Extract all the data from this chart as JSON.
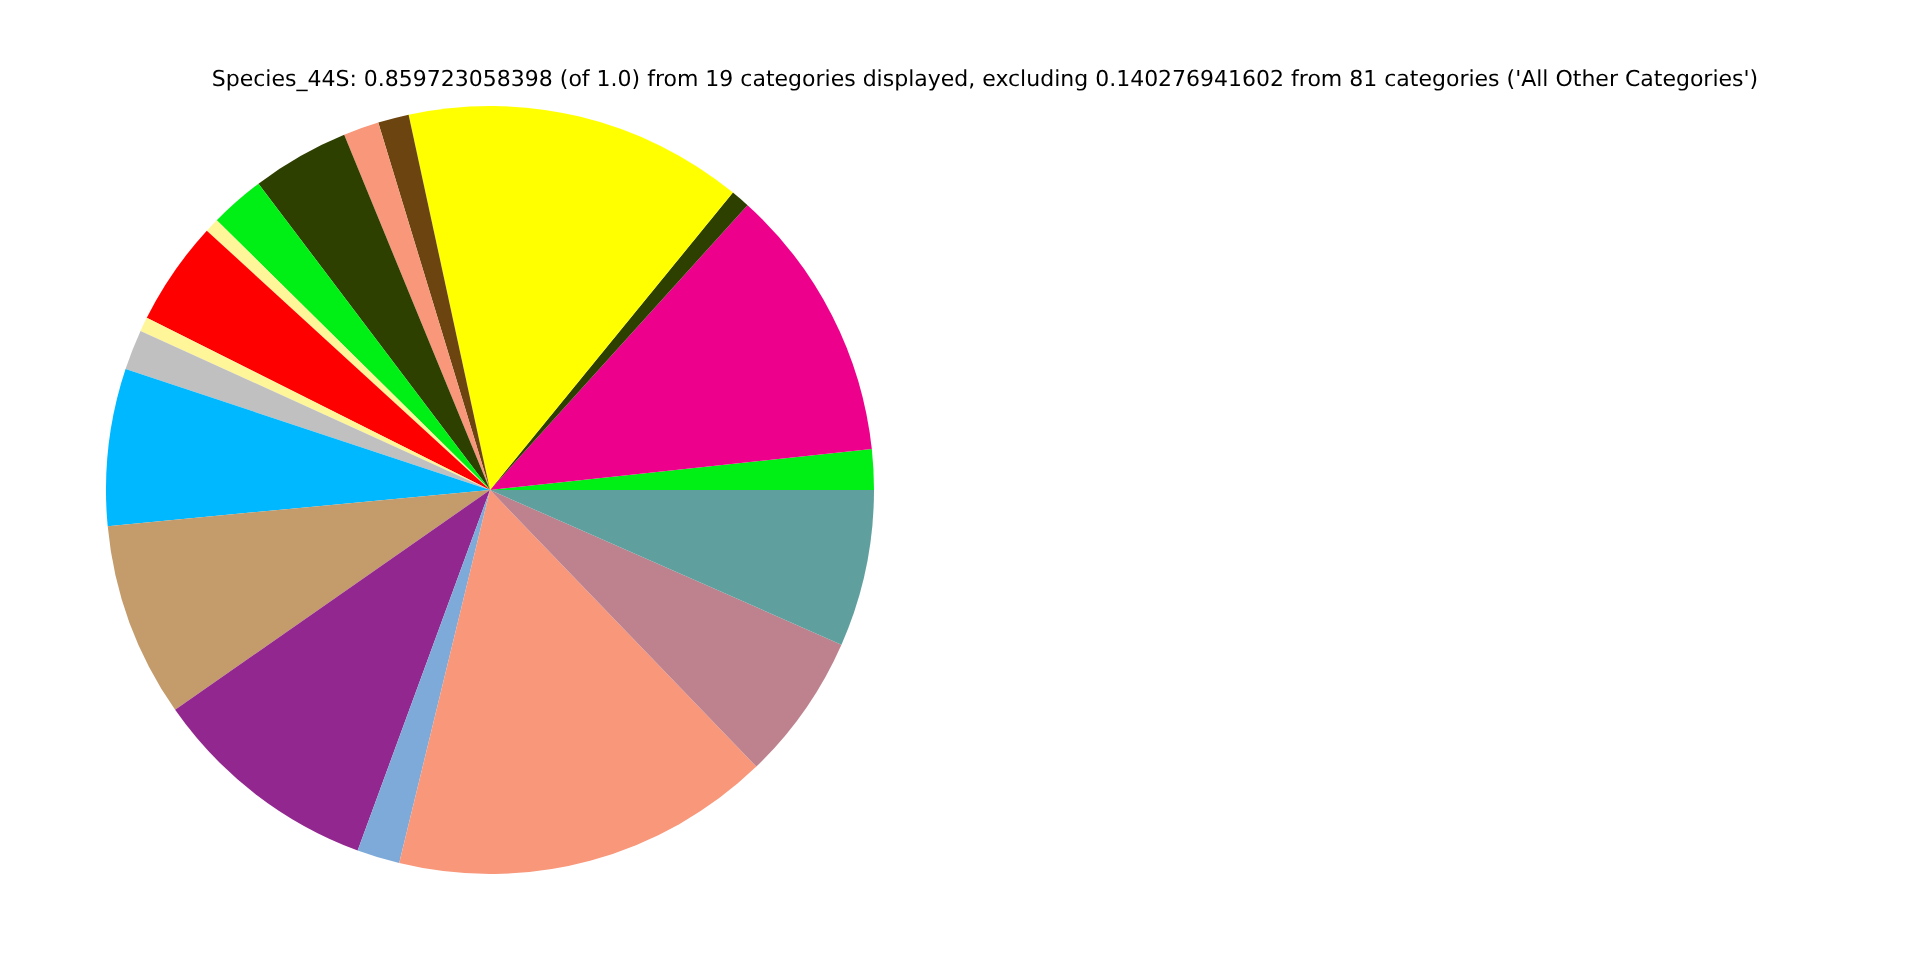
{
  "chart_data": {
    "type": "pie",
    "title": "Species_44S: 0.859723058398 (of 1.0) from 19 categories displayed, excluding 0.140276941602 from 81 categories ('All Other Categories')",
    "categories": [
      null,
      null,
      null,
      null,
      null,
      null,
      null,
      null,
      null,
      null,
      null,
      null,
      null,
      null,
      null,
      null,
      null,
      null,
      null
    ],
    "values": [
      1.7,
      11.6,
      0.8,
      14.3,
      1.3,
      1.5,
      4.1,
      2.3,
      0.6,
      4.4,
      0.6,
      1.7,
      6.6,
      8.2,
      9.7,
      1.8,
      16.0,
      6.2,
      6.6
    ],
    "colors": [
      "#00ef14",
      "#ed008b",
      "#2e4000",
      "#ffff00",
      "#6c4410",
      "#f8977a",
      "#2e4000",
      "#00ef14",
      "#fff599",
      "#ff0000",
      "#fff599",
      "#c0c0c0",
      "#00b8ff",
      "#c49b6a",
      "#92278f",
      "#7eaad9",
      "#f8977a",
      "#bd828d",
      "#5fa09e"
    ]
  }
}
